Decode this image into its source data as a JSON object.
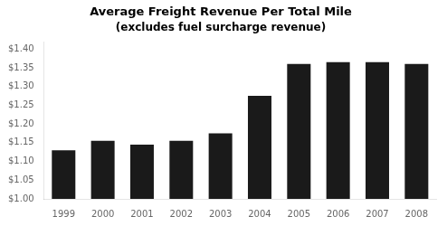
{
  "chart_data": {
    "type": "bar",
    "title": "Average Freight Revenue Per Total Mile",
    "subtitle": "(excludes fuel surcharge revenue)",
    "categories": [
      "1999",
      "2000",
      "2001",
      "2002",
      "2003",
      "2004",
      "2005",
      "2006",
      "2007",
      "2008"
    ],
    "values": [
      1.13,
      1.155,
      1.145,
      1.155,
      1.175,
      1.275,
      1.36,
      1.365,
      1.365,
      1.36
    ],
    "color": "#1a1a1a",
    "ylim": [
      1.0,
      1.42
    ],
    "yticks": [
      {
        "value": 1.0,
        "label": "$1.00"
      },
      {
        "value": 1.05,
        "label": "$1.05"
      },
      {
        "value": 1.1,
        "label": "$1.10"
      },
      {
        "value": 1.15,
        "label": "$1.15"
      },
      {
        "value": 1.2,
        "label": "$1.20"
      },
      {
        "value": 1.25,
        "label": "$1.25"
      },
      {
        "value": 1.3,
        "label": "$1.30"
      },
      {
        "value": 1.35,
        "label": "$1.35"
      },
      {
        "value": 1.4,
        "label": "$1.40"
      }
    ],
    "grid": false
  }
}
